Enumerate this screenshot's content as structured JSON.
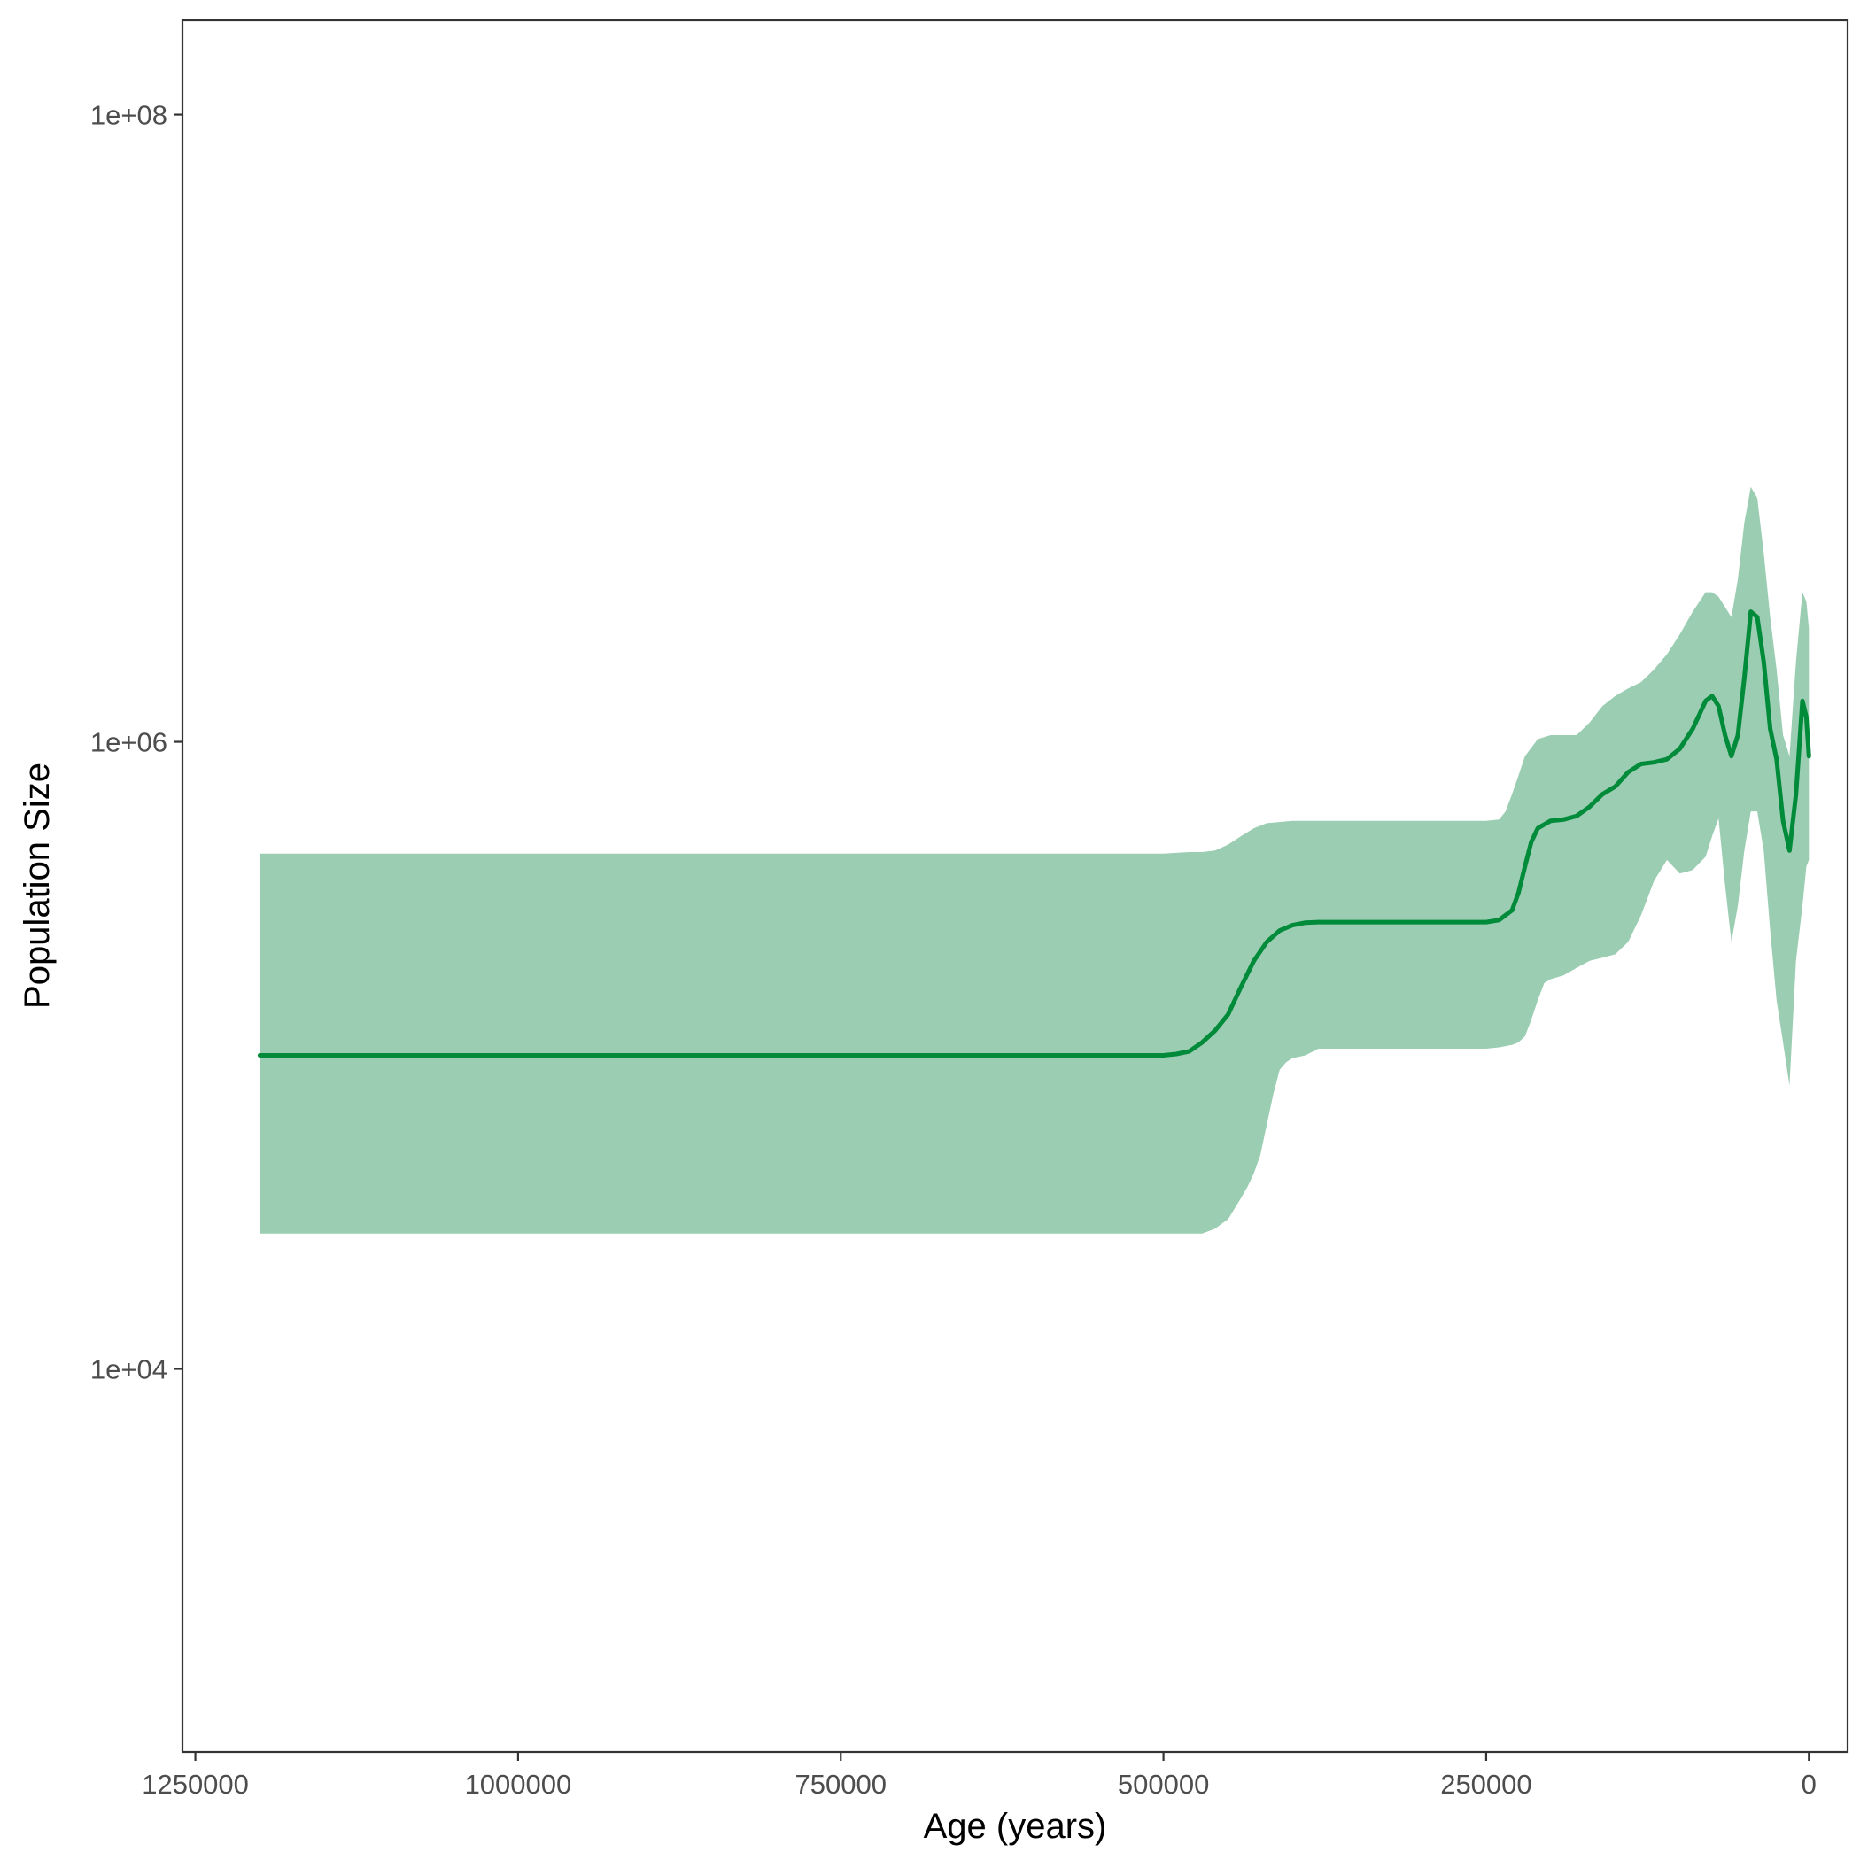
{
  "chart_data": {
    "type": "area",
    "title": "",
    "xlabel": "Age (years)",
    "ylabel": "Population Size",
    "x_reversed": true,
    "y_scale": "log10",
    "xlim": [
      1260000,
      -30000
    ],
    "ylim": [
      600,
      200000000
    ],
    "x_ticks": [
      1250000,
      1000000,
      750000,
      500000,
      250000,
      0
    ],
    "x_tick_labels": [
      "1250000",
      "1000000",
      "750000",
      "500000",
      "250000",
      "0"
    ],
    "y_ticks": [
      10000,
      1000000,
      100000000
    ],
    "y_tick_labels": [
      "1e+04",
      "1e+06",
      "1e+08"
    ],
    "grid": false,
    "legend": "none",
    "colors": {
      "line": "#008B3A",
      "band": "#9ACDB1"
    },
    "series": [
      {
        "values_kind": "median",
        "x": [
          1200000,
          1100000,
          1000000,
          900000,
          800000,
          700000,
          600000,
          500000,
          490000,
          480000,
          470000,
          460000,
          450000,
          440000,
          430000,
          420000,
          410000,
          400000,
          390000,
          380000,
          350000,
          300000,
          250000,
          240000,
          230000,
          225000,
          220000,
          215000,
          210000,
          200000,
          190000,
          180000,
          170000,
          160000,
          150000,
          140000,
          130000,
          120000,
          110000,
          100000,
          90000,
          80000,
          75000,
          70000,
          65000,
          60000,
          55000,
          50000,
          45000,
          40000,
          35000,
          30000,
          25000,
          20000,
          15000,
          10000,
          5000,
          2000,
          0
        ],
        "values": [
          100000,
          100000,
          100000,
          100000,
          100000,
          100000,
          100000,
          100000,
          101000,
          103000,
          110000,
          120000,
          135000,
          165000,
          200000,
          230000,
          250000,
          260000,
          265000,
          266000,
          266000,
          266000,
          266000,
          270000,
          290000,
          330000,
          400000,
          480000,
          530000,
          560000,
          565000,
          580000,
          620000,
          680000,
          720000,
          800000,
          850000,
          860000,
          880000,
          950000,
          1100000,
          1350000,
          1400000,
          1300000,
          1050000,
          900000,
          1050000,
          1600000,
          2600000,
          2500000,
          1800000,
          1100000,
          880000,
          560000,
          450000,
          680000,
          1350000,
          1200000,
          900000
        ]
      },
      {
        "values_kind": "upper",
        "x": [
          1200000,
          1000000,
          800000,
          600000,
          500000,
          480000,
          470000,
          460000,
          450000,
          440000,
          430000,
          420000,
          400000,
          380000,
          350000,
          300000,
          250000,
          240000,
          235000,
          230000,
          225000,
          220000,
          210000,
          200000,
          180000,
          170000,
          160000,
          150000,
          140000,
          130000,
          120000,
          110000,
          100000,
          90000,
          80000,
          75000,
          70000,
          60000,
          55000,
          50000,
          45000,
          40000,
          35000,
          30000,
          25000,
          20000,
          15000,
          10000,
          5000,
          2000,
          0
        ],
        "values": [
          440000,
          440000,
          440000,
          440000,
          440000,
          445000,
          445000,
          450000,
          470000,
          500000,
          530000,
          550000,
          560000,
          560000,
          560000,
          560000,
          560000,
          565000,
          600000,
          680000,
          780000,
          900000,
          1020000,
          1050000,
          1050000,
          1150000,
          1300000,
          1400000,
          1480000,
          1550000,
          1700000,
          1900000,
          2200000,
          2600000,
          3000000,
          3000000,
          2900000,
          2500000,
          3300000,
          5000000,
          6500000,
          6000000,
          4000000,
          2500000,
          1700000,
          1050000,
          900000,
          1800000,
          3000000,
          2800000,
          2300000
        ]
      },
      {
        "values_kind": "lower",
        "x": [
          1200000,
          1000000,
          800000,
          600000,
          500000,
          490000,
          480000,
          470000,
          460000,
          455000,
          450000,
          440000,
          435000,
          430000,
          425000,
          420000,
          415000,
          410000,
          405000,
          400000,
          390000,
          380000,
          350000,
          300000,
          250000,
          240000,
          230000,
          225000,
          220000,
          215000,
          210000,
          205000,
          200000,
          190000,
          180000,
          170000,
          160000,
          150000,
          140000,
          130000,
          120000,
          110000,
          100000,
          90000,
          80000,
          75000,
          70000,
          65000,
          60000,
          55000,
          50000,
          45000,
          40000,
          35000,
          30000,
          25000,
          20000,
          15000,
          10000,
          5000,
          2000,
          0
        ],
        "values": [
          27000,
          27000,
          27000,
          27000,
          27000,
          27000,
          27000,
          27000,
          28000,
          29000,
          30000,
          35000,
          38000,
          42000,
          48000,
          60000,
          75000,
          90000,
          95000,
          98000,
          100000,
          105000,
          105000,
          105000,
          105000,
          106000,
          108000,
          110000,
          115000,
          130000,
          150000,
          170000,
          175000,
          180000,
          190000,
          200000,
          205000,
          210000,
          230000,
          280000,
          360000,
          420000,
          380000,
          390000,
          430000,
          500000,
          570000,
          350000,
          230000,
          300000,
          450000,
          600000,
          600000,
          450000,
          250000,
          150000,
          110000,
          80000,
          200000,
          300000,
          400000,
          420000
        ]
      }
    ]
  }
}
